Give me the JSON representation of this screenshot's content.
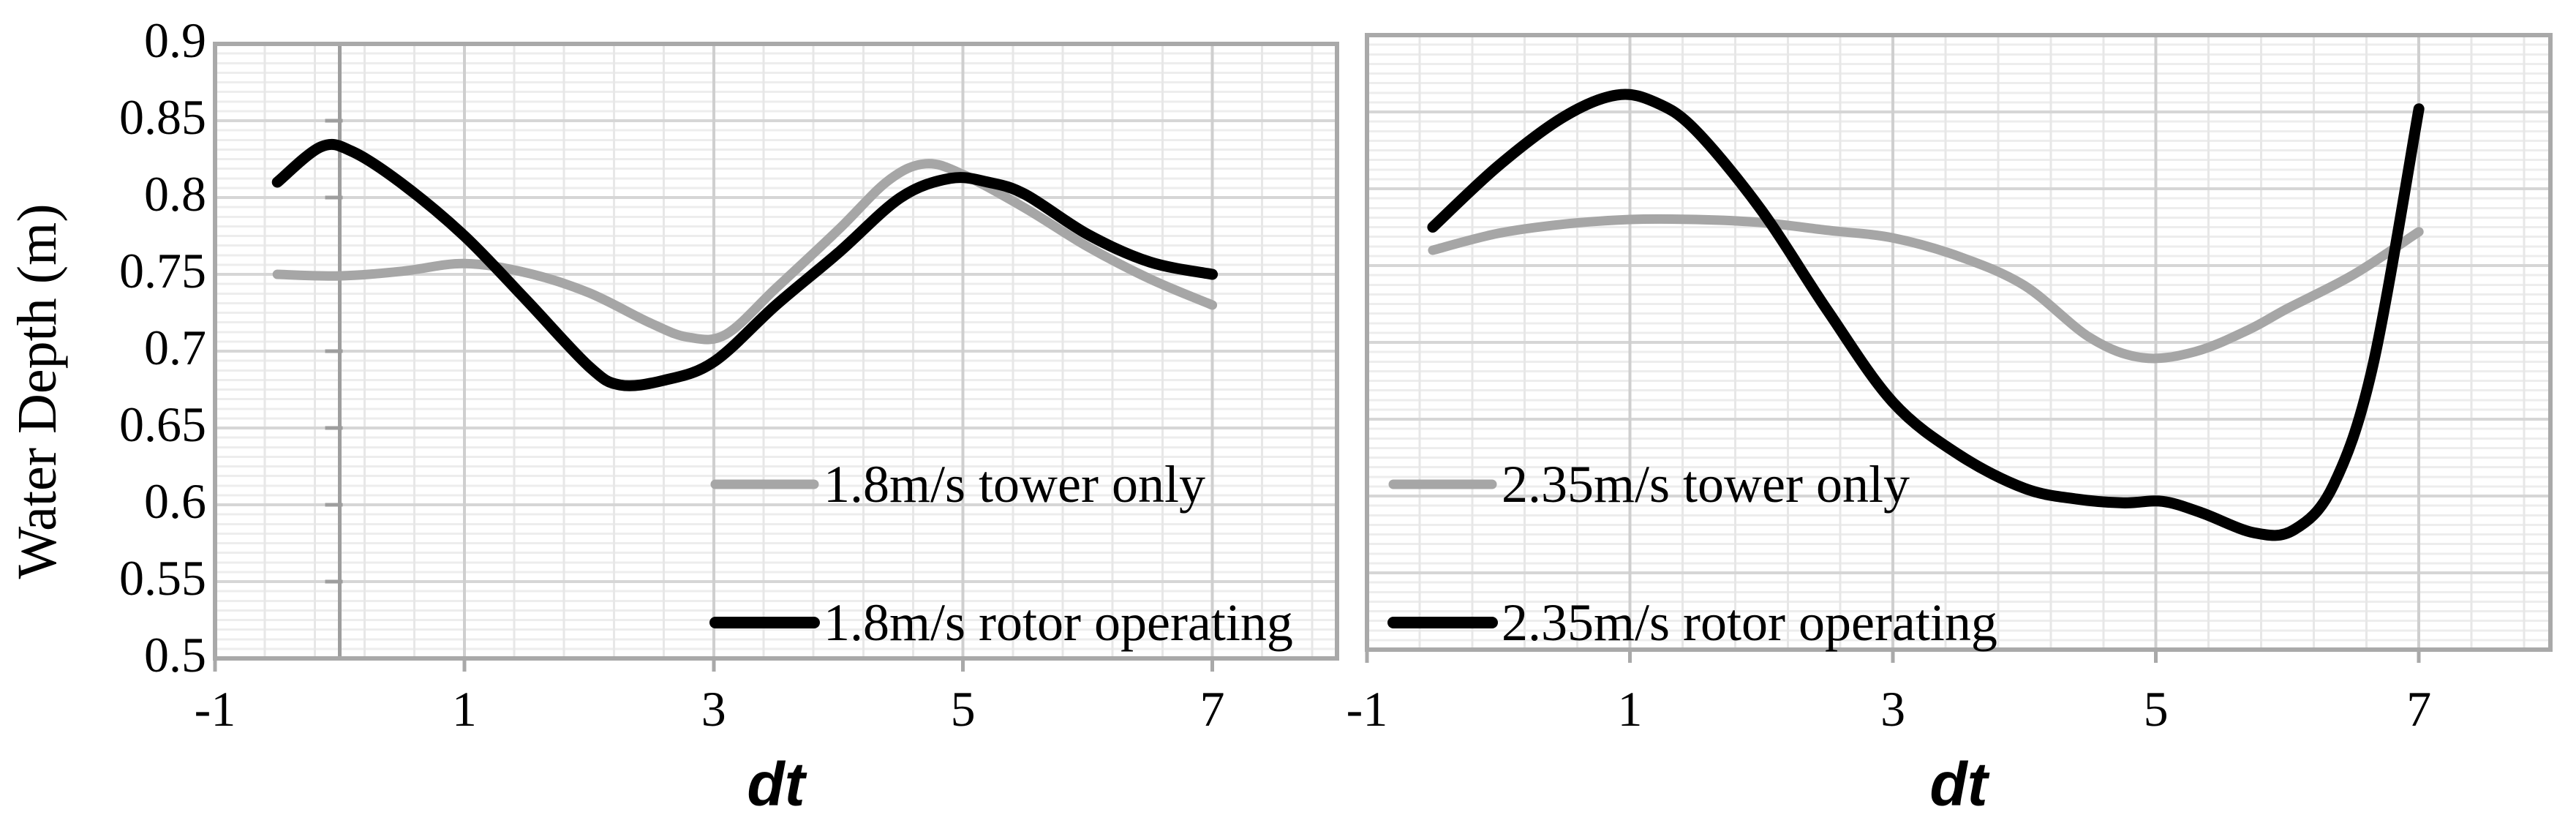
{
  "figure": {
    "background": "#ffffff"
  },
  "styles": {
    "frame_color": "#a9a9a9",
    "grid_major_color": "#d6d6d6",
    "grid_minor_color": "#ededed",
    "zero_axis_color": "#9e9e9e",
    "tick_mark_color": "#a9a9a9",
    "text_color": "#000000"
  },
  "chart_data": [
    {
      "type": "line",
      "panel": "left",
      "title": "",
      "xlabel": "dt",
      "ylabel": "Water Depth (m)",
      "xlim": [
        -1,
        8
      ],
      "ylim": [
        0.5,
        0.9
      ],
      "xticks": [
        -1,
        1,
        3,
        5,
        7
      ],
      "xticklabels": [
        "-1",
        "1",
        "3",
        "5",
        "7"
      ],
      "yticks": [
        0.9,
        0.85,
        0.8,
        0.75,
        0.7,
        0.65,
        0.6,
        0.55,
        0.5
      ],
      "yticklabels": [
        "0.9",
        "0.85",
        "0.8",
        "0.75",
        "0.7",
        "0.65",
        "0.6",
        "0.55",
        "0.5"
      ],
      "x_minor_step": 0.4,
      "y_minor_step": 0.00625,
      "y_major_step": 0.05,
      "grid": true,
      "legend_position": "inside-lower-center",
      "series": [
        {
          "name": "1.8m/s tower only",
          "color": "#a6a6a6",
          "width": 13,
          "points": [
            [
              -0.5,
              0.75
            ],
            [
              0,
              0.749
            ],
            [
              0.5,
              0.752
            ],
            [
              1,
              0.757
            ],
            [
              1.5,
              0.751
            ],
            [
              2,
              0.738
            ],
            [
              2.5,
              0.718
            ],
            [
              2.8,
              0.709
            ],
            [
              3.1,
              0.711
            ],
            [
              3.5,
              0.741
            ],
            [
              4,
              0.779
            ],
            [
              4.4,
              0.811
            ],
            [
              4.7,
              0.822
            ],
            [
              5,
              0.815
            ],
            [
              5.5,
              0.793
            ],
            [
              6,
              0.768
            ],
            [
              6.5,
              0.747
            ],
            [
              7,
              0.73
            ]
          ]
        },
        {
          "name": "1.8m/s rotor operating",
          "color": "#000000",
          "width": 15,
          "points": [
            [
              -0.5,
              0.81
            ],
            [
              -0.15,
              0.833
            ],
            [
              0.1,
              0.83
            ],
            [
              0.5,
              0.809
            ],
            [
              1,
              0.775
            ],
            [
              1.5,
              0.733
            ],
            [
              2,
              0.69
            ],
            [
              2.25,
              0.678
            ],
            [
              2.6,
              0.681
            ],
            [
              3,
              0.693
            ],
            [
              3.5,
              0.73
            ],
            [
              4,
              0.764
            ],
            [
              4.5,
              0.8
            ],
            [
              4.9,
              0.8125
            ],
            [
              5.2,
              0.81
            ],
            [
              5.5,
              0.802
            ],
            [
              6,
              0.776
            ],
            [
              6.5,
              0.758
            ],
            [
              7,
              0.75
            ]
          ]
        }
      ]
    },
    {
      "type": "line",
      "panel": "right",
      "title": "",
      "xlabel": "dt",
      "ylabel": "",
      "xlim": [
        -1,
        8
      ],
      "ylim": [
        0.5,
        0.9
      ],
      "xticks": [
        -1,
        1,
        3,
        5,
        7
      ],
      "xticklabels": [
        "-1",
        "1",
        "3",
        "5",
        "7"
      ],
      "yticks": [
        0.9,
        0.85,
        0.8,
        0.75,
        0.7,
        0.65,
        0.6,
        0.55,
        0.5
      ],
      "yticklabels": [
        "0.9",
        "0.85",
        "0.8",
        "0.75",
        "0.7",
        "0.65",
        "0.6",
        "0.55",
        "0.5"
      ],
      "x_minor_step": 0.4,
      "y_minor_step": 0.00625,
      "y_major_step": 0.05,
      "grid": true,
      "legend_position": "inside-lower-left",
      "series": [
        {
          "name": "2.35m/s tower only",
          "color": "#a6a6a6",
          "width": 13,
          "points": [
            [
              -0.5,
              0.76
            ],
            [
              0,
              0.771
            ],
            [
              0.5,
              0.777
            ],
            [
              1,
              0.78
            ],
            [
              1.5,
              0.78
            ],
            [
              2,
              0.778
            ],
            [
              2.5,
              0.773
            ],
            [
              3,
              0.768
            ],
            [
              3.5,
              0.756
            ],
            [
              4,
              0.737
            ],
            [
              4.5,
              0.703
            ],
            [
              4.9,
              0.69
            ],
            [
              5.3,
              0.694
            ],
            [
              5.7,
              0.708
            ],
            [
              6,
              0.722
            ],
            [
              6.5,
              0.744
            ],
            [
              7,
              0.772
            ]
          ]
        },
        {
          "name": "2.35m/s rotor operating",
          "color": "#000000",
          "width": 15,
          "points": [
            [
              -0.5,
              0.775
            ],
            [
              0,
              0.815
            ],
            [
              0.5,
              0.847
            ],
            [
              0.9,
              0.861
            ],
            [
              1.2,
              0.856
            ],
            [
              1.5,
              0.838
            ],
            [
              2,
              0.786
            ],
            [
              2.5,
              0.721
            ],
            [
              3,
              0.661
            ],
            [
              3.5,
              0.627
            ],
            [
              4,
              0.605
            ],
            [
              4.4,
              0.598
            ],
            [
              4.75,
              0.5955
            ],
            [
              5.05,
              0.5965
            ],
            [
              5.35,
              0.589
            ],
            [
              5.75,
              0.576
            ],
            [
              6.05,
              0.578
            ],
            [
              6.35,
              0.607
            ],
            [
              6.65,
              0.685
            ],
            [
              7,
              0.852
            ]
          ]
        }
      ]
    }
  ]
}
